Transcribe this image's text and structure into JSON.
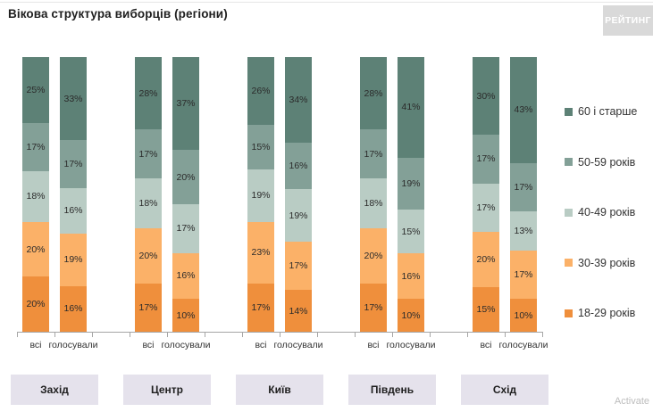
{
  "title": "Вікова структура виборців (регіони)",
  "logo_text": "РЕЙТИНГ",
  "watermark": "Activate",
  "chart_data": {
    "type": "bar",
    "stacked": true,
    "orientation": "vertical",
    "value_suffix": "%",
    "axis_color": "#a6a6a6",
    "legend_position": "right",
    "legend": [
      {
        "label": "60 і старше",
        "color": "#5d8176"
      },
      {
        "label": "50-59 років",
        "color": "#83a097"
      },
      {
        "label": "40-49 років",
        "color": "#b9ccc4"
      },
      {
        "label": "30-39 років",
        "color": "#fbb168"
      },
      {
        "label": "18-29 років",
        "color": "#ef8f3c"
      }
    ],
    "segment_order_top_to_bottom": [
      "60 і старше",
      "50-59 років",
      "40-49 років",
      "30-39 років",
      "18-29 років"
    ],
    "bar_labels": [
      "всі",
      "голосували"
    ],
    "regions": [
      {
        "name": "Захід",
        "bars": [
          {
            "label": "всі",
            "values": [
              25,
              17,
              18,
              20,
              20
            ]
          },
          {
            "label": "голосували",
            "values": [
              33,
              17,
              16,
              19,
              16
            ]
          }
        ]
      },
      {
        "name": "Центр",
        "bars": [
          {
            "label": "всі",
            "values": [
              28,
              17,
              18,
              20,
              17
            ]
          },
          {
            "label": "голосували",
            "values": [
              37,
              20,
              17,
              16,
              10
            ]
          }
        ]
      },
      {
        "name": "Київ",
        "bars": [
          {
            "label": "всі",
            "values": [
              26,
              15,
              19,
              23,
              17
            ]
          },
          {
            "label": "голосували",
            "values": [
              34,
              16,
              19,
              17,
              14
            ]
          }
        ]
      },
      {
        "name": "Південь",
        "bars": [
          {
            "label": "всі",
            "values": [
              28,
              17,
              18,
              20,
              17
            ]
          },
          {
            "label": "голосували",
            "values": [
              41,
              19,
              15,
              16,
              10
            ]
          }
        ]
      },
      {
        "name": "Схід",
        "bars": [
          {
            "label": "всі",
            "values": [
              30,
              17,
              17,
              20,
              15
            ]
          },
          {
            "label": "голосували",
            "values": [
              43,
              17,
              13,
              17,
              10
            ]
          }
        ]
      }
    ]
  }
}
